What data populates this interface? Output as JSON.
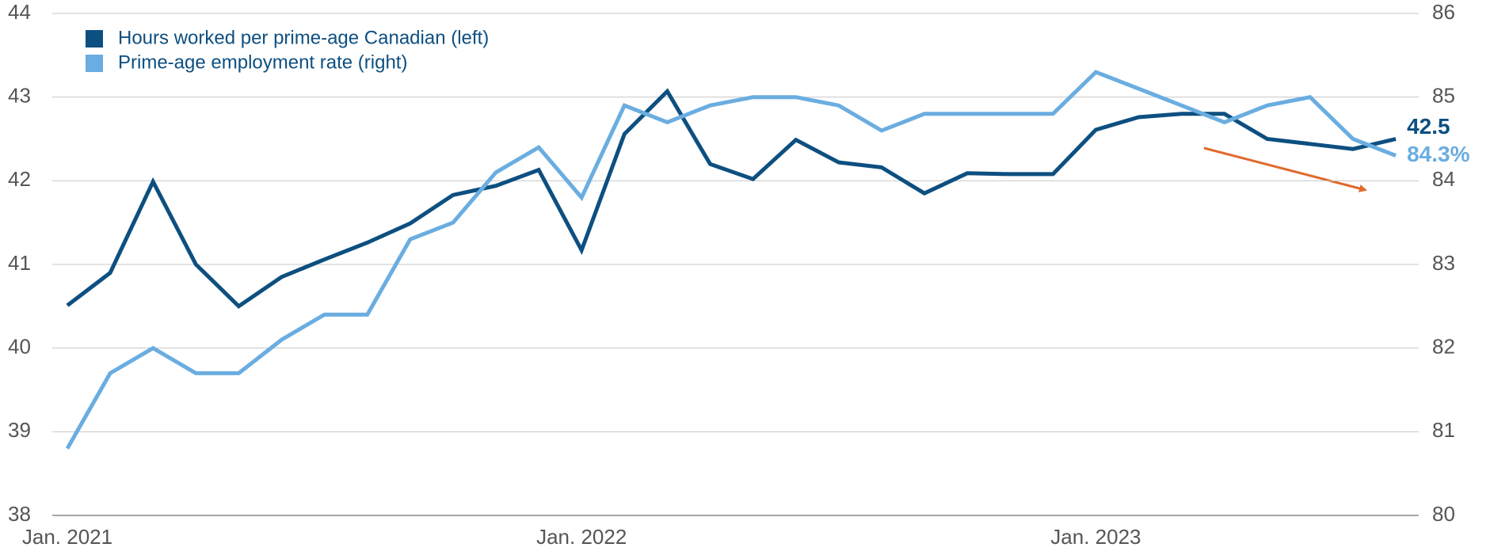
{
  "chart_data": {
    "type": "line",
    "categories": [
      "Jan. 2021",
      null,
      null,
      null,
      null,
      null,
      null,
      null,
      null,
      null,
      null,
      null,
      "Jan. 2022",
      null,
      null,
      null,
      null,
      null,
      null,
      null,
      null,
      null,
      null,
      null,
      "Jan. 2023",
      null,
      null,
      null,
      null,
      null,
      null,
      null
    ],
    "series": [
      {
        "name": "Hours worked per prime-age Canadian (left)",
        "color": "#0d4f80",
        "axis": "y",
        "values": [
          40.51,
          40.9,
          41.99,
          41.0,
          40.5,
          40.85,
          41.06,
          41.26,
          41.49,
          41.83,
          41.94,
          42.13,
          41.17,
          42.56,
          43.07,
          42.2,
          42.02,
          42.49,
          42.22,
          42.16,
          41.85,
          42.09,
          42.08,
          42.08,
          42.61,
          42.76,
          42.8,
          42.8,
          42.5,
          42.44,
          42.38,
          42.5
        ],
        "value_labels": [
          null,
          null,
          null,
          null,
          null,
          null,
          null,
          null,
          null,
          null,
          null,
          null,
          null,
          null,
          null,
          null,
          null,
          null,
          null,
          null,
          null,
          null,
          null,
          null,
          null,
          null,
          null,
          null,
          null,
          null,
          null,
          "42.5"
        ]
      },
      {
        "name": "Prime-age employment rate (right)",
        "color": "#6aade0",
        "axis": "y2",
        "values": [
          80.8,
          81.7,
          82.0,
          81.7,
          81.7,
          82.1,
          82.4,
          82.4,
          83.3,
          83.5,
          84.1,
          84.4,
          83.8,
          84.9,
          84.7,
          84.9,
          85.0,
          85.0,
          84.9,
          84.6,
          84.8,
          84.8,
          84.8,
          84.8,
          85.3,
          85.1,
          84.9,
          84.7,
          84.9,
          85.0,
          84.5,
          84.3
        ],
        "value_labels": [
          null,
          null,
          null,
          null,
          null,
          null,
          null,
          null,
          null,
          null,
          null,
          null,
          null,
          null,
          null,
          null,
          null,
          null,
          null,
          null,
          null,
          null,
          null,
          null,
          null,
          null,
          null,
          null,
          null,
          null,
          null,
          "84.3%"
        ]
      }
    ],
    "ylim": [
      38,
      44
    ],
    "yticks": [
      38,
      39,
      40,
      41,
      42,
      43,
      44
    ],
    "y2lim": [
      80,
      86
    ],
    "y2ticks": [
      80,
      81,
      82,
      83,
      84,
      85,
      86
    ],
    "grid": true,
    "legend": "upper left"
  }
}
